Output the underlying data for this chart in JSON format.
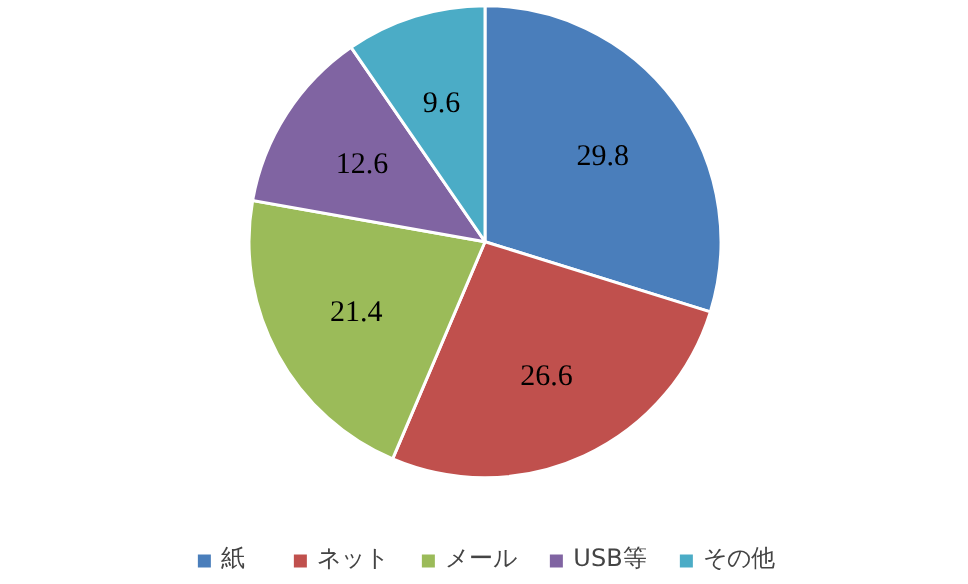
{
  "chart_data": {
    "type": "pie",
    "categories": [
      "紙",
      "ネット",
      "メール",
      "USB等",
      "その他"
    ],
    "values": [
      29.8,
      26.6,
      21.4,
      12.6,
      9.6
    ],
    "colors": [
      "#4a7ebb",
      "#c0504d",
      "#9bbb59",
      "#8064a2",
      "#4bacc6"
    ],
    "data_labels": true,
    "legend": "bottom"
  }
}
